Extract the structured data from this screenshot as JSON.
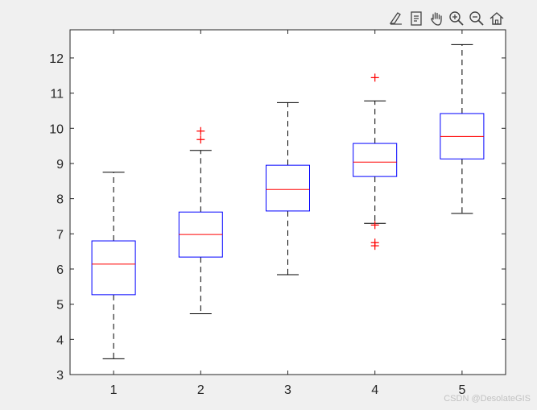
{
  "toolbar": {
    "icons": [
      "brush-icon",
      "datatip-icon",
      "pan-icon",
      "zoom-in-icon",
      "zoom-out-icon",
      "home-icon"
    ]
  },
  "watermark": "CSDN @DesolateGIS",
  "colors": {
    "box": "#0000ff",
    "median": "#ff0000",
    "whisker": "#000000",
    "outlier": "#ff0000",
    "axes": "#262626",
    "background": "#ffffff"
  },
  "chart_data": {
    "type": "boxplot",
    "categories": [
      "1",
      "2",
      "3",
      "4",
      "5"
    ],
    "ylim": [
      3,
      12.8
    ],
    "yticks": [
      3,
      4,
      5,
      6,
      7,
      8,
      9,
      10,
      11,
      12
    ],
    "grid": false,
    "boxes": [
      {
        "category": "1",
        "whisker_low": 3.45,
        "q1": 5.27,
        "median": 6.14,
        "q3": 6.8,
        "whisker_high": 8.75,
        "outliers": []
      },
      {
        "category": "2",
        "whisker_low": 4.73,
        "q1": 6.34,
        "median": 6.98,
        "q3": 7.62,
        "whisker_high": 9.37,
        "outliers": [
          9.68,
          9.92
        ]
      },
      {
        "category": "3",
        "whisker_low": 5.84,
        "q1": 7.65,
        "median": 8.26,
        "q3": 8.95,
        "whisker_high": 10.73,
        "outliers": []
      },
      {
        "category": "4",
        "whisker_low": 7.3,
        "q1": 8.63,
        "median": 9.04,
        "q3": 9.57,
        "whisker_high": 10.78,
        "outliers": [
          11.44,
          7.25,
          6.75,
          6.66
        ]
      },
      {
        "category": "5",
        "whisker_low": 7.58,
        "q1": 9.13,
        "median": 9.77,
        "q3": 10.42,
        "whisker_high": 12.38,
        "outliers": []
      }
    ]
  }
}
